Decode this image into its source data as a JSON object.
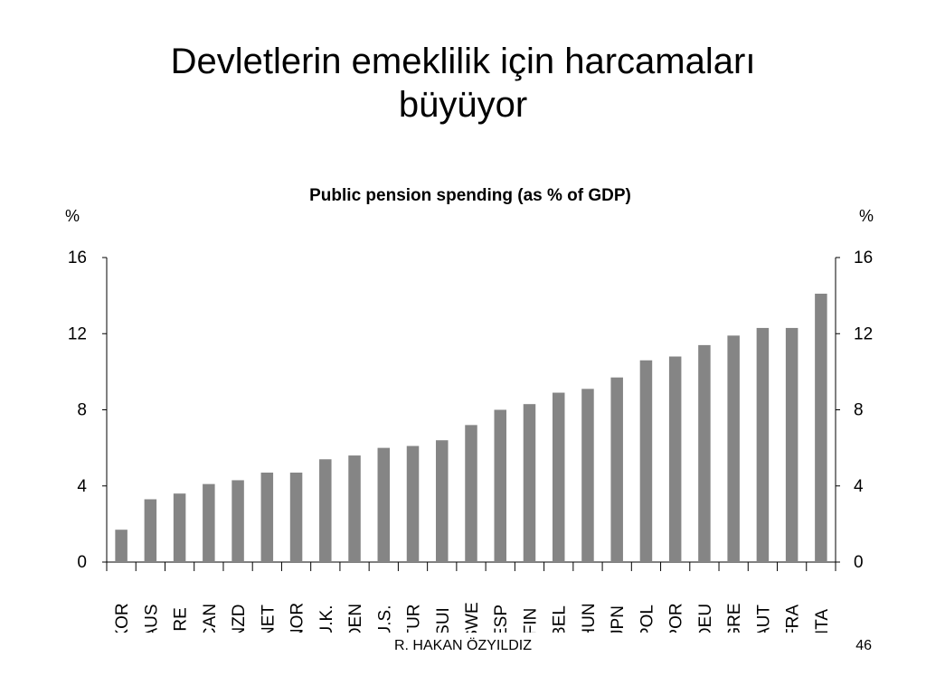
{
  "slide": {
    "title_line1": "Devletlerin emeklilik için harcamaları",
    "title_line2": "büyüyor",
    "author": "R. HAKAN ÖZYILDIZ",
    "page_number": "46"
  },
  "colors": {
    "bar": "#858585",
    "axis": "#000000",
    "background": "#ffffff"
  },
  "chart_data": {
    "type": "bar",
    "title": "Public pension spending (as % of GDP)",
    "ylabel_left": "%",
    "ylabel_right": "%",
    "ylim": [
      0,
      16
    ],
    "yticks": [
      0,
      4,
      8,
      12,
      16
    ],
    "grid": false,
    "categories": [
      "KOR",
      "AUS",
      "IRE",
      "CAN",
      "NZD",
      "NET",
      "NOR",
      "U.K.",
      "DEN",
      "U.S.",
      "TUR",
      "SUI",
      "SWE",
      "ESP",
      "FIN",
      "BEL",
      "HUN",
      "JPN",
      "POL",
      "POR",
      "DEU",
      "GRE",
      "AUT",
      "FRA",
      "ITA"
    ],
    "values": [
      1.7,
      3.3,
      3.6,
      4.1,
      4.3,
      4.7,
      4.7,
      5.4,
      5.6,
      6.0,
      6.1,
      6.4,
      7.2,
      8.0,
      8.3,
      8.9,
      9.1,
      9.7,
      10.6,
      10.8,
      11.4,
      11.9,
      12.3,
      12.3,
      14.1
    ]
  }
}
